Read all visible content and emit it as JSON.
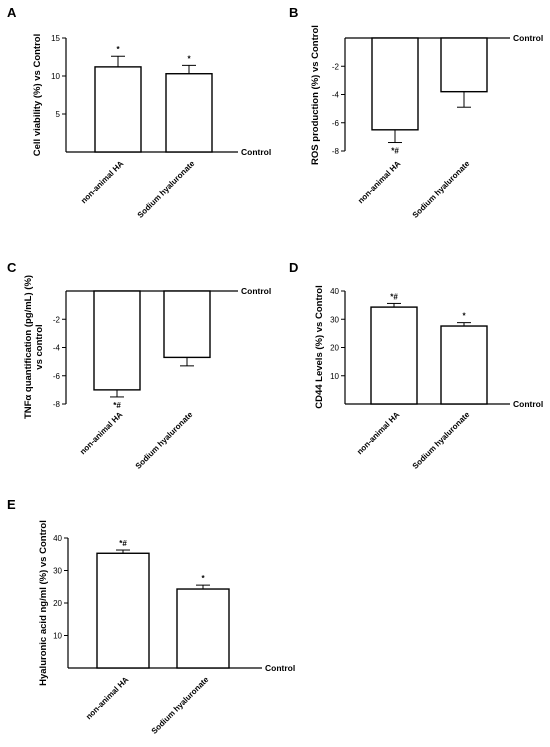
{
  "chart_data": [
    {
      "panel": "A",
      "type": "bar",
      "ylabel": "Cell viability (%) vs Control",
      "baseline_label": "Control",
      "categories": [
        "non-animal HA",
        "Sodium hyaluronate"
      ],
      "values": [
        11.2,
        10.3
      ],
      "errors": [
        1.4,
        1.1
      ],
      "annotations": [
        "*",
        "*"
      ],
      "ylim": [
        0,
        15
      ],
      "yticks": [
        5,
        10,
        15
      ]
    },
    {
      "panel": "B",
      "type": "bar",
      "ylabel": "ROS production (%) vs Control",
      "baseline_label": "Control",
      "categories": [
        "non-animal HA",
        "Sodium hyaluronate"
      ],
      "values": [
        -6.5,
        -3.8
      ],
      "errors": [
        0.9,
        1.1
      ],
      "annotations": [
        "*#",
        ""
      ],
      "ylim": [
        -8,
        0
      ],
      "yticks": [
        -2,
        -4,
        -6,
        -8
      ]
    },
    {
      "panel": "C",
      "type": "bar",
      "ylabel": "TNFα quantification (pg/mL) (%) vs control",
      "ylabel_lines": [
        "TNFα quantification (pg/mL) (%)",
        "vs control"
      ],
      "baseline_label": "Control",
      "categories": [
        "non-animal HA",
        "Sodium hyaluronate"
      ],
      "values": [
        -7.0,
        -4.7
      ],
      "errors": [
        0.5,
        0.6
      ],
      "annotations": [
        "*#",
        ""
      ],
      "ylim": [
        -8,
        0
      ],
      "yticks": [
        -2,
        -4,
        -6,
        -8
      ]
    },
    {
      "panel": "D",
      "type": "bar",
      "ylabel": "CD44 Levels (%) vs Control",
      "baseline_label": "Control",
      "categories": [
        "non-animal HA",
        "Sodium hyaluronate"
      ],
      "values": [
        34.3,
        27.6
      ],
      "errors": [
        1.3,
        1.2
      ],
      "annotations": [
        "*#",
        "*"
      ],
      "ylim": [
        0,
        40
      ],
      "yticks": [
        10,
        20,
        30,
        40
      ]
    },
    {
      "panel": "E",
      "type": "bar",
      "ylabel": "Hyaluronic acid ng/ml (%) vs Control",
      "baseline_label": "Control",
      "categories": [
        "non-animal HA",
        "Sodium hyaluronate"
      ],
      "values": [
        35.3,
        24.3
      ],
      "errors": [
        1.0,
        1.2
      ],
      "annotations": [
        "*#",
        "*"
      ],
      "ylim": [
        0,
        40
      ],
      "yticks": [
        10,
        20,
        30,
        40
      ]
    }
  ]
}
